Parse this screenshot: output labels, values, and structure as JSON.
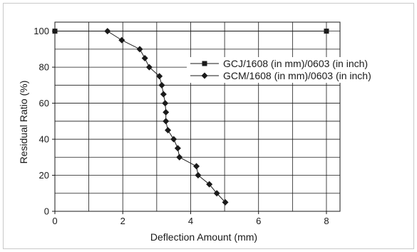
{
  "chart_data": {
    "type": "line",
    "title": "",
    "xlabel": "Deflection Amount (mm)",
    "ylabel": "Residual Ratio (%)",
    "xlim": [
      0,
      8.4
    ],
    "ylim": [
      0,
      105
    ],
    "x_ticks": [
      "0",
      "2",
      "4",
      "6",
      "8"
    ],
    "y_ticks": [
      "0",
      "20",
      "40",
      "60",
      "80",
      "100"
    ],
    "x_tick_values": [
      0,
      2,
      4,
      6,
      8
    ],
    "y_tick_values": [
      0,
      20,
      40,
      60,
      80,
      100
    ],
    "grid": true,
    "legend_position": "top-right",
    "series": [
      {
        "name": "GCJ/1608 (in mm)/0603 (in inch)",
        "marker": "square",
        "color": "#1a1a1a",
        "points": [
          [
            0,
            100
          ],
          [
            8,
            100
          ]
        ]
      },
      {
        "name": "GCM/1608 (in mm)/0603 (in inch)",
        "marker": "diamond",
        "color": "#1a1a1a",
        "points": [
          [
            1.55,
            100
          ],
          [
            1.97,
            95
          ],
          [
            2.5,
            90
          ],
          [
            2.65,
            85
          ],
          [
            2.78,
            80
          ],
          [
            3.08,
            75
          ],
          [
            3.15,
            70
          ],
          [
            3.2,
            65
          ],
          [
            3.25,
            60
          ],
          [
            3.27,
            55
          ],
          [
            3.27,
            50
          ],
          [
            3.33,
            45
          ],
          [
            3.5,
            40
          ],
          [
            3.62,
            35
          ],
          [
            3.67,
            30
          ],
          [
            4.17,
            25
          ],
          [
            4.22,
            20
          ],
          [
            4.55,
            15
          ],
          [
            4.77,
            10
          ],
          [
            5.02,
            5
          ]
        ]
      }
    ]
  }
}
